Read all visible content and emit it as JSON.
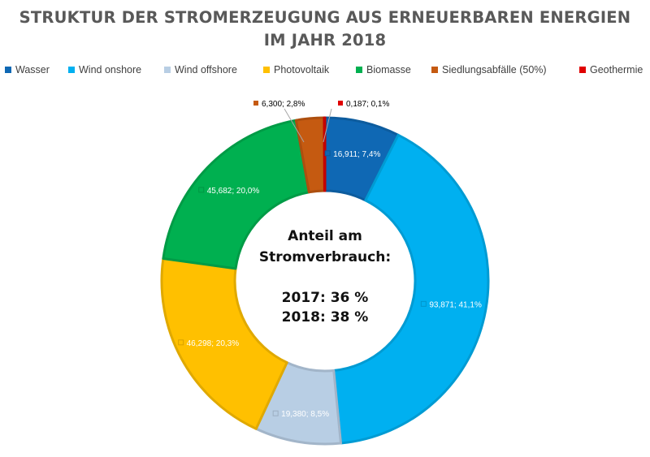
{
  "title": {
    "line1": "STRUKTUR DER STROMERZEUGUNG AUS ERNEUERBAREN ENERGIEN",
    "line2": "IM JAHR 2018"
  },
  "center": {
    "line1": "Anteil am",
    "line2": "Stromverbrauch:",
    "line3": "2017: 36 %",
    "line4": "2018: 38 %"
  },
  "chart_data": {
    "type": "pie",
    "donut": true,
    "legend_position": "top",
    "categories": [
      "Wasser",
      "Wind onshore",
      "Wind offshore",
      "Photovoltaik",
      "Biomasse",
      "Siedlungsabfälle (50%)",
      "Geothermie"
    ],
    "values": [
      16.911,
      93.871,
      19.38,
      46.298,
      45.682,
      6.3,
      0.187
    ],
    "percentages": [
      7.4,
      41.1,
      8.5,
      20.3,
      20.0,
      2.8,
      0.1
    ],
    "data_labels": [
      "16,911; 7,4%",
      "93,871; 41,1%",
      "19,380; 8,5%",
      "46,298; 20,3%",
      "45,682; 20,0%",
      "6,300; 2,8%",
      "0,187; 0,1%"
    ],
    "colors": [
      "#0F68B4",
      "#00B0F0",
      "#B8CEE4",
      "#FFC000",
      "#00B050",
      "#C55A11",
      "#E00000"
    ]
  }
}
